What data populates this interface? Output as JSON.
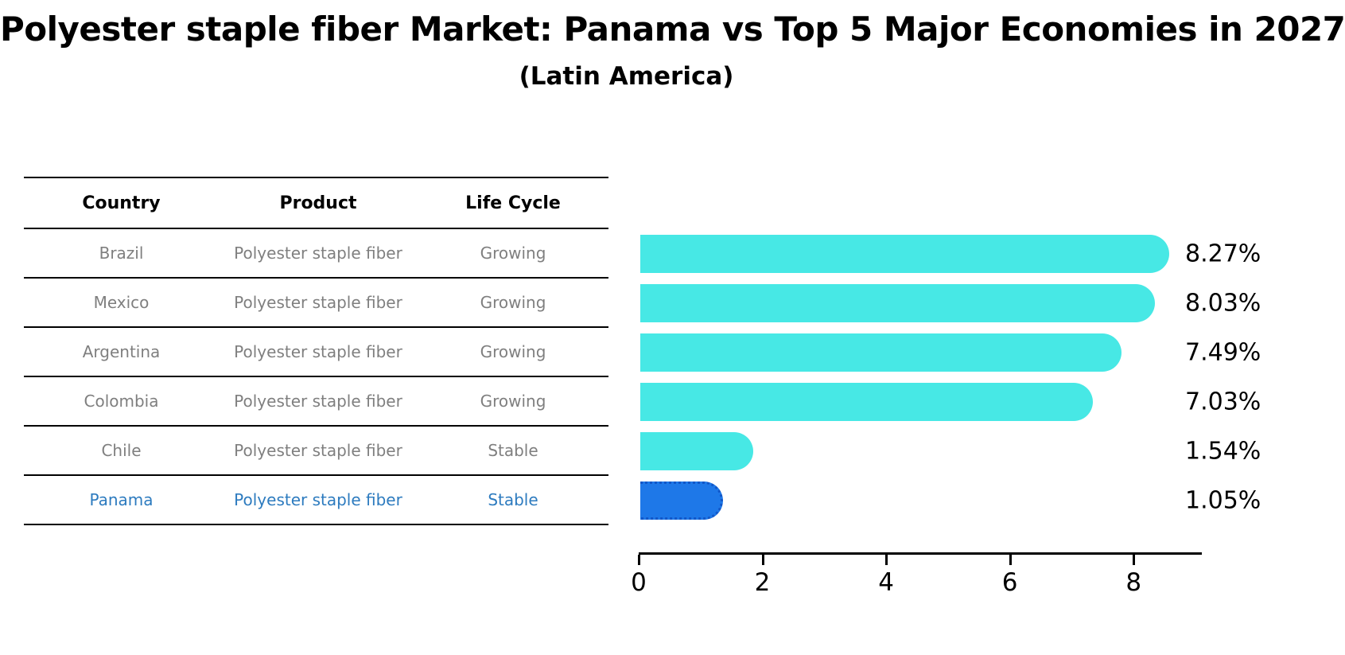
{
  "title": "Polyester staple fiber Market: Panama vs Top 5 Major Economies in 2027",
  "subtitle": "(Latin America)",
  "table": {
    "headers": [
      "Country",
      "Product",
      "Life Cycle"
    ]
  },
  "rows": [
    {
      "country": "Brazil",
      "product": "Polyester staple fiber",
      "life_cycle": "Growing",
      "value": 8.27,
      "value_label": "8.27%",
      "highlighted": false
    },
    {
      "country": "Mexico",
      "product": "Polyester staple fiber",
      "life_cycle": "Growing",
      "value": 8.03,
      "value_label": "8.03%",
      "highlighted": false
    },
    {
      "country": "Argentina",
      "product": "Polyester staple fiber",
      "life_cycle": "Growing",
      "value": 7.49,
      "value_label": "7.49%",
      "highlighted": false
    },
    {
      "country": "Colombia",
      "product": "Polyester staple fiber",
      "life_cycle": "Growing",
      "value": 7.03,
      "value_label": "7.03%",
      "highlighted": false
    },
    {
      "country": "Chile",
      "product": "Polyester staple fiber",
      "life_cycle": "Stable",
      "value": 1.54,
      "value_label": "1.54%",
      "highlighted": false
    },
    {
      "country": "Panama",
      "product": "Polyester staple fiber",
      "life_cycle": "Stable",
      "value": 1.05,
      "value_label": "1.05%",
      "highlighted": true
    }
  ],
  "chart_data": {
    "type": "bar",
    "orientation": "horizontal",
    "title": "Polyester staple fiber Market: Panama vs Top 5 Major Economies in 2027",
    "subtitle": "(Latin America)",
    "categories": [
      "Brazil",
      "Mexico",
      "Argentina",
      "Colombia",
      "Chile",
      "Panama"
    ],
    "values": [
      8.27,
      8.03,
      7.49,
      7.03,
      1.54,
      1.05
    ],
    "value_labels": [
      "8.27%",
      "8.03%",
      "7.49%",
      "7.03%",
      "1.54%",
      "1.05%"
    ],
    "x_ticks": [
      0,
      2,
      4,
      6,
      8
    ],
    "xlim": [
      0,
      9
    ],
    "grid": "off",
    "legend": "none",
    "highlight_category": "Panama",
    "colors": {
      "bar": "#47e8e5",
      "highlight_bar": "#1e78e8",
      "highlight_bar_edge": "#1257c8",
      "highlight_text": "#2d7bbf",
      "table_text": "#7f7f7f",
      "axis_text": "#000000"
    }
  }
}
